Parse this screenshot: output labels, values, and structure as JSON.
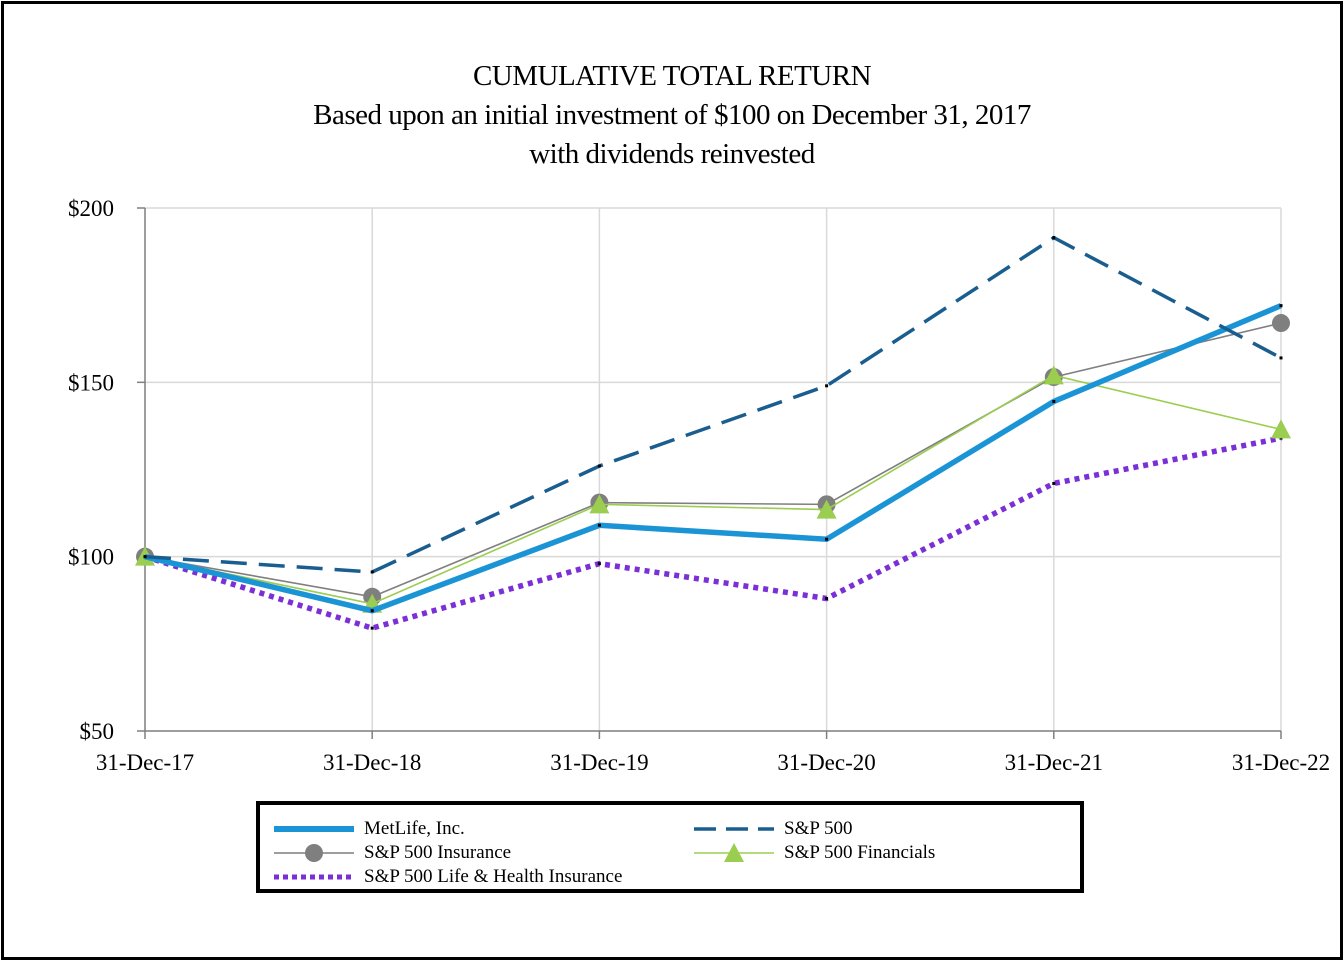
{
  "title_lines": [
    "CUMULATIVE TOTAL RETURN",
    "Based upon an initial investment of $100 on December 31, 2017",
    "with dividends reinvested"
  ],
  "chart_data": {
    "type": "line",
    "title": "CUMULATIVE TOTAL RETURN",
    "subtitle": "Based upon an initial investment of $100 on December 31, 2017 with dividends reinvested",
    "categories": [
      "31-Dec-17",
      "31-Dec-18",
      "31-Dec-19",
      "31-Dec-20",
      "31-Dec-21",
      "31-Dec-22"
    ],
    "ylim": [
      50,
      200
    ],
    "yticks": [
      50,
      100,
      150,
      200
    ],
    "ytick_labels": [
      "$50",
      "$100",
      "$150",
      "$200"
    ],
    "grid": true,
    "legend_position": "bottom",
    "series": [
      {
        "name": "MetLife, Inc.",
        "values": [
          100,
          84.5,
          109,
          105,
          144.5,
          172
        ],
        "color": "#1B94D6",
        "style": "thick-solid",
        "marker": "none"
      },
      {
        "name": "S&P 500",
        "values": [
          100,
          95.6,
          126,
          149,
          191.5,
          157
        ],
        "color": "#1A5E8F",
        "style": "dashed",
        "marker": "none"
      },
      {
        "name": "S&P 500 Insurance",
        "values": [
          100,
          88.5,
          115.5,
          115,
          151.5,
          167
        ],
        "color": "#7F7F7F",
        "style": "thin-solid",
        "marker": "circle"
      },
      {
        "name": "S&P 500 Financials",
        "values": [
          100,
          86.5,
          115,
          113.5,
          152,
          136.5
        ],
        "color": "#9ACD50",
        "style": "thin-solid",
        "marker": "triangle"
      },
      {
        "name": "S&P 500 Life & Health Insurance",
        "values": [
          100,
          79.5,
          98,
          88,
          121,
          134
        ],
        "color": "#7B2FD6",
        "style": "dotted",
        "marker": "none"
      }
    ]
  }
}
